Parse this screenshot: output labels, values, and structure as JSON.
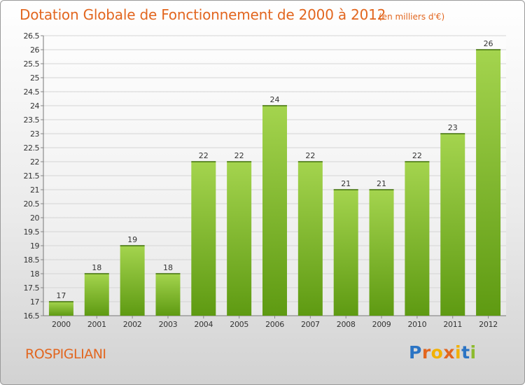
{
  "header": {
    "title": "Dotation Globale de Fonctionnement de 2000 à 2012",
    "subtitle": "(en milliers d'€)"
  },
  "footer": {
    "town": "ROSPIGLIANI",
    "logo_text": "Proxiti"
  },
  "colors": {
    "accent": "#e2661f",
    "bar_light": "#a4d44e",
    "bar_dark": "#5e9a12",
    "logo_letters": [
      "#2b74c4",
      "#e2661f",
      "#f2b100",
      "#e2661f",
      "#f2b100",
      "#2b74c4",
      "#8dbb2e"
    ]
  },
  "chart_data": {
    "type": "bar",
    "categories": [
      "2000",
      "2001",
      "2002",
      "2003",
      "2004",
      "2005",
      "2006",
      "2007",
      "2008",
      "2009",
      "2010",
      "2011",
      "2012"
    ],
    "values": [
      17,
      18,
      19,
      18,
      22,
      22,
      24,
      22,
      21,
      21,
      22,
      23,
      26
    ],
    "ylim": [
      16.5,
      26.5
    ],
    "yticks": [
      "16.5",
      "17",
      "17.5",
      "18",
      "18.5",
      "19",
      "19.5",
      "20",
      "20.5",
      "21",
      "21.5",
      "22",
      "22.5",
      "23",
      "23.5",
      "24",
      "24.5",
      "25",
      "25.5",
      "26",
      "26.5"
    ],
    "grid": true,
    "legend": "none"
  }
}
